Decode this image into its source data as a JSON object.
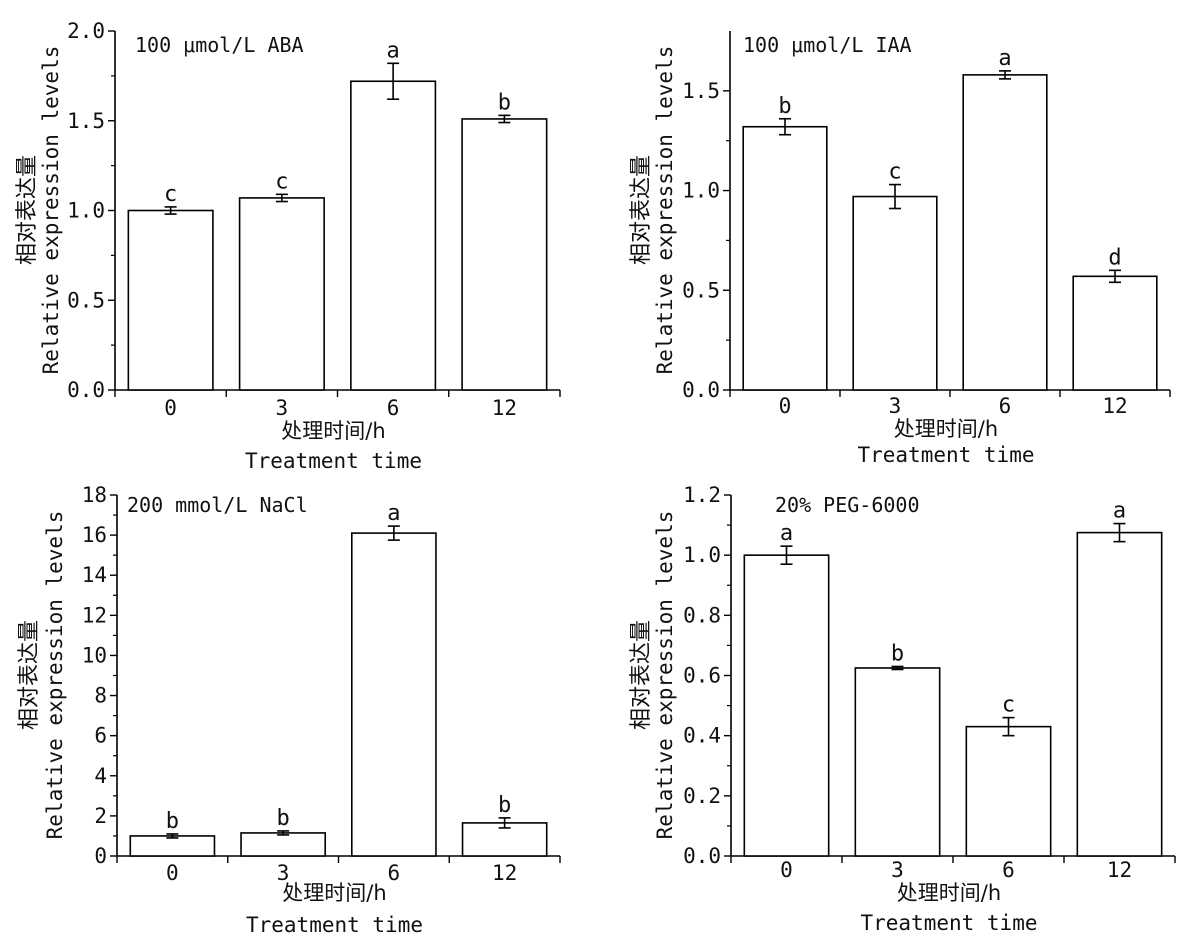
{
  "figure": {
    "panels": [
      {
        "id": "aba",
        "chart_data": {
          "type": "bar",
          "title": "100 μmol/L ABA",
          "categories": [
            "0",
            "3",
            "6",
            "12"
          ],
          "values": [
            1.0,
            1.07,
            1.72,
            1.51
          ],
          "errors": [
            0.02,
            0.02,
            0.1,
            0.02
          ],
          "significance": [
            "c",
            "c",
            "a",
            "b"
          ],
          "ylim": [
            0,
            2.0
          ],
          "yticks": [
            "0.0",
            "0.5",
            "1.0",
            "1.5",
            "2.0"
          ],
          "xlabel_cn": "处理时间/h",
          "xlabel": "Treatment time",
          "ylabel_cn": "相对表达量",
          "ylabel": "Relative expression levels"
        }
      },
      {
        "id": "iaa",
        "chart_data": {
          "type": "bar",
          "title": "100 μmol/L IAA",
          "categories": [
            "0",
            "3",
            "6",
            "12"
          ],
          "values": [
            1.32,
            0.97,
            1.58,
            0.57
          ],
          "errors": [
            0.04,
            0.06,
            0.02,
            0.03
          ],
          "significance": [
            "b",
            "c",
            "a",
            "d"
          ],
          "ylim": [
            0,
            1.8
          ],
          "yticks": [
            "0.0",
            "0.5",
            "1.0",
            "1.5"
          ],
          "xlabel_cn": "处理时间/h",
          "xlabel": "Treatment time",
          "ylabel_cn": "相对表达量",
          "ylabel": "Relative expression levels"
        }
      },
      {
        "id": "nacl",
        "chart_data": {
          "type": "bar",
          "title": "200 mmol/L NaCl",
          "categories": [
            "0",
            "3",
            "6",
            "12"
          ],
          "values": [
            1.0,
            1.15,
            16.1,
            1.65
          ],
          "errors": [
            0.1,
            0.1,
            0.35,
            0.25
          ],
          "significance": [
            "b",
            "b",
            "a",
            "b"
          ],
          "ylim": [
            0,
            18
          ],
          "yticks": [
            "0",
            "2",
            "4",
            "6",
            "8",
            "10",
            "12",
            "14",
            "16",
            "18"
          ],
          "xlabel_cn": "处理时间/h",
          "xlabel": "Treatment time",
          "ylabel_cn": "相对表达量",
          "ylabel": "Relative expression levels"
        }
      },
      {
        "id": "peg",
        "chart_data": {
          "type": "bar",
          "title": "20% PEG-6000",
          "categories": [
            "0",
            "3",
            "6",
            "12"
          ],
          "values": [
            1.0,
            0.625,
            0.43,
            1.075
          ],
          "errors": [
            0.03,
            0.005,
            0.03,
            0.03
          ],
          "significance": [
            "a",
            "b",
            "c",
            "a"
          ],
          "ylim": [
            0,
            1.2
          ],
          "yticks": [
            "0.0",
            "0.2",
            "0.4",
            "0.6",
            "0.8",
            "1.0",
            "1.2"
          ],
          "xlabel_cn": "处理时间/h",
          "xlabel": "Treatment time",
          "ylabel_cn": "相对表达量",
          "ylabel": "Relative expression levels"
        }
      }
    ]
  }
}
